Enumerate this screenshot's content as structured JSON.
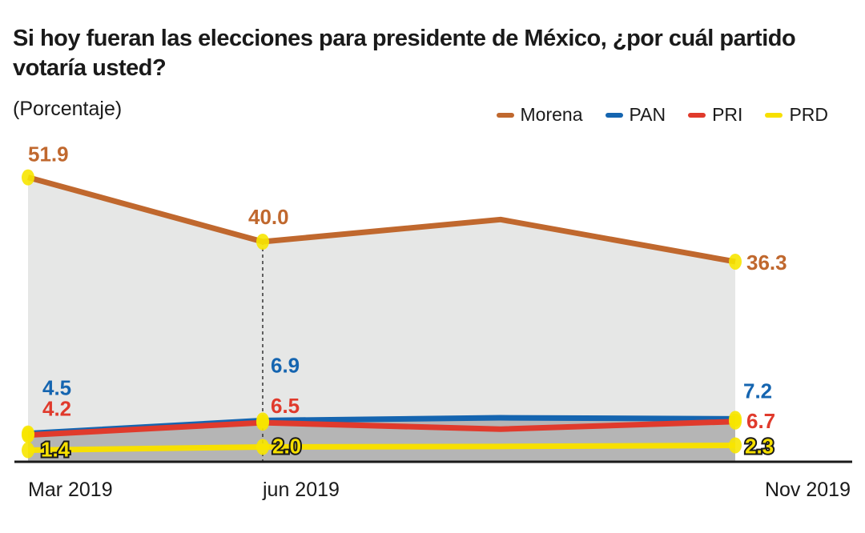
{
  "chart_data": {
    "type": "line",
    "title": "Si hoy fueran las elecciones para presidente de México, ¿por cuál partido votaría usted?",
    "subtitle": "(Porcentaje)",
    "x": [
      "Mar 2019",
      "jun 2019",
      "",
      "Nov  2019"
    ],
    "series": [
      {
        "name": "Morena",
        "color": "#c0682e",
        "values": [
          51.9,
          40.0,
          44.1,
          36.3
        ],
        "labels": [
          "51.9",
          "40.0",
          "",
          "36.3"
        ]
      },
      {
        "name": "PAN",
        "color": "#1565b0",
        "values": [
          4.5,
          6.9,
          7.4,
          7.2
        ],
        "labels": [
          "4.5",
          "6.9",
          "",
          "7.2"
        ]
      },
      {
        "name": "PRI",
        "color": "#e03a2c",
        "values": [
          4.2,
          6.5,
          5.3,
          6.7
        ],
        "labels": [
          "4.2",
          "6.5",
          "",
          "6.7"
        ]
      },
      {
        "name": "PRD",
        "color": "#f7e000",
        "values": [
          1.4,
          2.0,
          2.1,
          2.3
        ],
        "labels": [
          "1.4",
          "2.0",
          "",
          "2.3"
        ]
      }
    ],
    "ylim": [
      0,
      52
    ],
    "grid": false,
    "legend": "top-right",
    "marker_color": "#f7e600"
  }
}
